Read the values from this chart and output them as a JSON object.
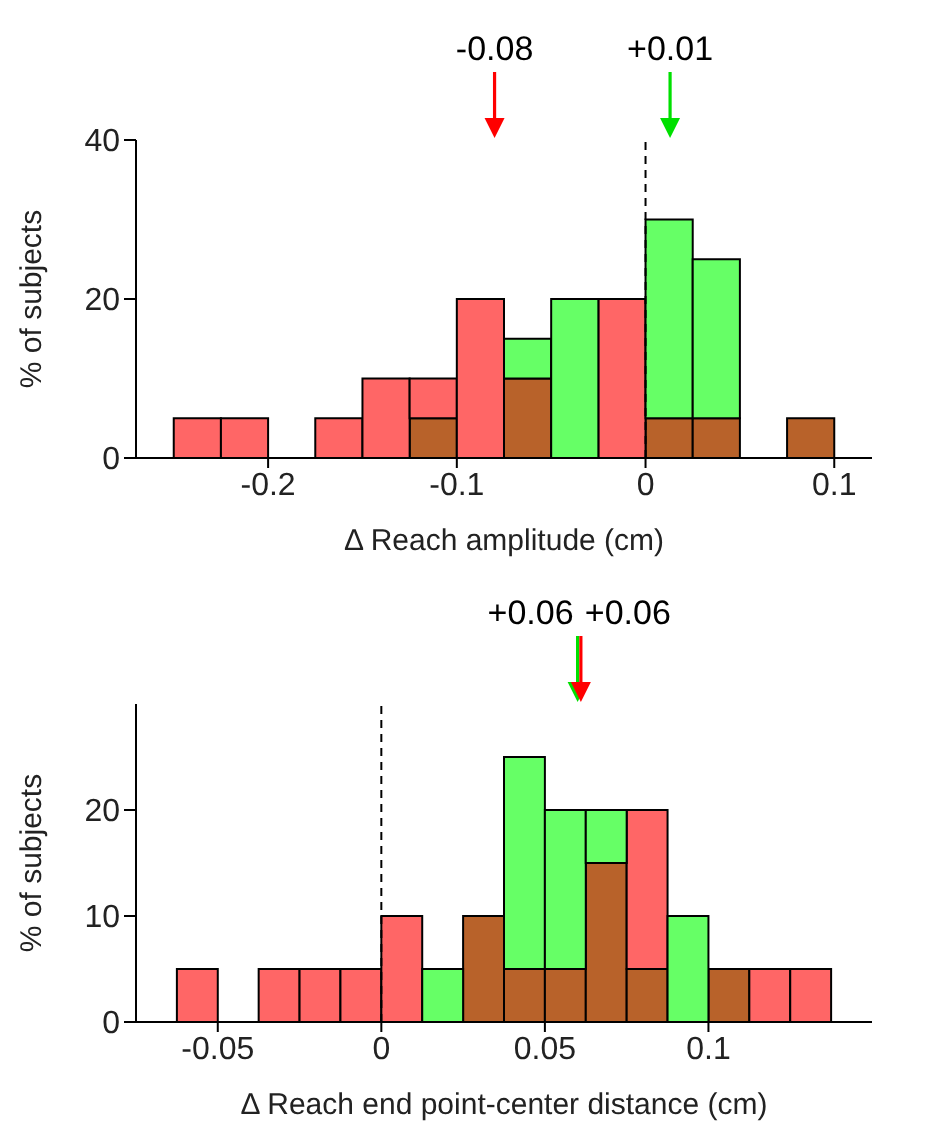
{
  "chart_data": [
    {
      "type": "bar",
      "xlabel": "Δ Reach amplitude (cm)",
      "ylabel": "% of subjects",
      "stacked": true,
      "x": [
        -0.2375,
        -0.2125,
        -0.1875,
        -0.1625,
        -0.1375,
        -0.1125,
        -0.0875,
        -0.0625,
        -0.0375,
        -0.0125,
        0.0125,
        0.0375,
        0.0625,
        0.0875
      ],
      "series": [
        {
          "color": "#b8622a",
          "values": [
            0,
            0,
            0,
            0,
            0,
            5,
            0,
            10,
            0,
            0,
            5,
            5,
            0,
            5
          ]
        },
        {
          "color": "#ff6666",
          "values": [
            5,
            5,
            0,
            5,
            10,
            5,
            20,
            0,
            0,
            20,
            0,
            0,
            0,
            0
          ]
        },
        {
          "color": "#66ff66",
          "values": [
            0,
            0,
            0,
            0,
            0,
            0,
            0,
            5,
            20,
            0,
            25,
            20,
            0,
            0
          ]
        }
      ],
      "xlim": [
        -0.27,
        0.12
      ],
      "xticks": [
        -0.2,
        -0.1,
        0,
        0.1
      ],
      "ylim": [
        0,
        40
      ],
      "yticks": [
        0,
        20,
        40
      ],
      "ref_lines": [
        {
          "axis": "x",
          "value": 0,
          "line_style": "dashed",
          "color": "#000000"
        },
        {
          "axis": "x",
          "value": -0.08,
          "label": "-0.08",
          "color": "#ff0000"
        },
        {
          "axis": "x",
          "value": 0.013,
          "label": "+0.01",
          "color": "#00e000"
        }
      ],
      "grid": false
    },
    {
      "type": "bar",
      "xlabel": "Δ Reach end point-center distance (cm)",
      "ylabel": "% of subjects",
      "stacked": true,
      "x": [
        -0.05625,
        -0.04375,
        -0.03125,
        -0.01875,
        -0.00625,
        0.00625,
        0.01875,
        0.03125,
        0.04375,
        0.05625,
        0.06875,
        0.08125,
        0.09375,
        0.10625,
        0.11875,
        0.13125
      ],
      "series": [
        {
          "color": "#b8622a",
          "values": [
            0,
            0,
            0,
            0,
            0,
            0,
            0,
            10,
            5,
            5,
            15,
            5,
            0,
            5,
            0,
            0
          ]
        },
        {
          "color": "#ff6666",
          "values": [
            5,
            0,
            5,
            5,
            5,
            10,
            0,
            0,
            0,
            0,
            0,
            15,
            0,
            0,
            5,
            5
          ]
        },
        {
          "color": "#66ff66",
          "values": [
            0,
            0,
            0,
            0,
            0,
            0,
            5,
            0,
            20,
            15,
            5,
            0,
            10,
            0,
            0,
            0
          ]
        }
      ],
      "xlim": [
        -0.075,
        0.15
      ],
      "xticks": [
        -0.05,
        0,
        0.05,
        0.1
      ],
      "ylim": [
        0,
        30
      ],
      "yticks": [
        0,
        10,
        20
      ],
      "ref_lines": [
        {
          "axis": "x",
          "value": 0,
          "line_style": "dashed",
          "color": "#000000"
        },
        {
          "axis": "x",
          "value": 0.06,
          "label": "+0.06",
          "color": "#00e000"
        },
        {
          "axis": "x",
          "value": 0.061,
          "label": "+0.06",
          "color": "#ff0000"
        }
      ],
      "grid": false
    }
  ]
}
